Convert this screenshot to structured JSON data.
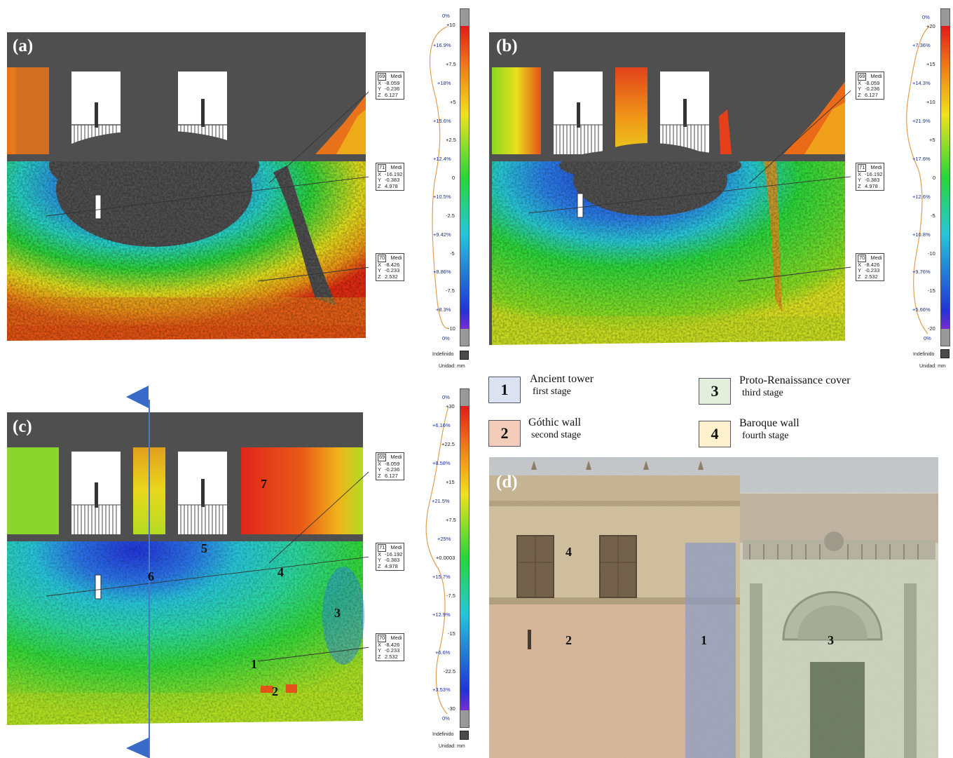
{
  "panels": {
    "a": {
      "label": "(a)"
    },
    "b": {
      "label": "(b)"
    },
    "c": {
      "label": "(c)"
    },
    "d": {
      "label": "(d)"
    }
  },
  "annotations": [
    {
      "id": "69",
      "name": "Medi",
      "x": "-8.059",
      "y": "-0.236",
      "z": "6.127"
    },
    {
      "id": "71",
      "name": "Medi",
      "x": "-16.192",
      "y": "-0.383",
      "z": "4.978"
    },
    {
      "id": "70",
      "name": "Medi",
      "x": "-8.426",
      "y": "-0.233",
      "z": "2.532"
    }
  ],
  "axis_letters": {
    "x": "X",
    "y": "Y",
    "z": "Z"
  },
  "scales": {
    "a": {
      "values": [
        "+10",
        "+7.5",
        "+5",
        "+2.5",
        "0",
        "-2.5",
        "-5",
        "-7.5",
        "-10"
      ],
      "percents": [
        "0%",
        "+16.9%",
        "+18%",
        "+15.6%",
        "+12.4%",
        "+10.5%",
        "+9.42%",
        "+8.86%",
        "+8.3%",
        "0%"
      ],
      "undefined_label": "Indefinido",
      "unit_label": "Unidad: mm"
    },
    "b": {
      "values": [
        "+20",
        "+15",
        "+10",
        "+5",
        "0",
        "-5",
        "-10",
        "-15",
        "-20"
      ],
      "percents": [
        "0%",
        "+7.36%",
        "+14.3%",
        "+21.9%",
        "+17.6%",
        "+12.6%",
        "+10.8%",
        "+9.76%",
        "+5.66%",
        "0%"
      ],
      "undefined_label": "Indefinido",
      "unit_label": "Unidad: mm"
    },
    "c": {
      "values": [
        "+30",
        "+22.5",
        "+15",
        "+7.5",
        "+0.0003",
        "-7.5",
        "-15",
        "-22.5",
        "-30"
      ],
      "percents": [
        "0%",
        "+6.16%",
        "+8.58%",
        "+21.5%",
        "+25%",
        "+15.7%",
        "+12.9%",
        "+6.6%",
        "+3.53%",
        "0%"
      ],
      "undefined_label": "Indefinido",
      "unit_label": "Unidad: mm"
    }
  },
  "panel_c_numbers": [
    "7",
    "5",
    "6",
    "4",
    "3",
    "1",
    "2"
  ],
  "panel_d_numbers": [
    "4",
    "2",
    "1",
    "3"
  ],
  "legend": [
    {
      "num": "1",
      "title": "Ancient tower",
      "stage": "first stage",
      "color": "#dde3f2"
    },
    {
      "num": "3",
      "title": "Proto-Renaissance cover",
      "stage": "third stage",
      "color": "#e3efdc"
    },
    {
      "num": "2",
      "title": "Góthic wall",
      "stage": "second stage",
      "color": "#f3cdb9"
    },
    {
      "num": "4",
      "title": "Baroque wall",
      "stage": "fourth stage",
      "color": "#fdf0cc"
    }
  ],
  "colors": {
    "background_gray": "#4f4f4f",
    "deviation_high": "#e52a10",
    "deviation_mid_high": "#f2c21a",
    "deviation_zero": "#25d63a",
    "deviation_mid_low": "#22b4e6",
    "deviation_low": "#2232d8",
    "section_line": "#4b78cc",
    "section_arrow": "#3a6ac8"
  }
}
